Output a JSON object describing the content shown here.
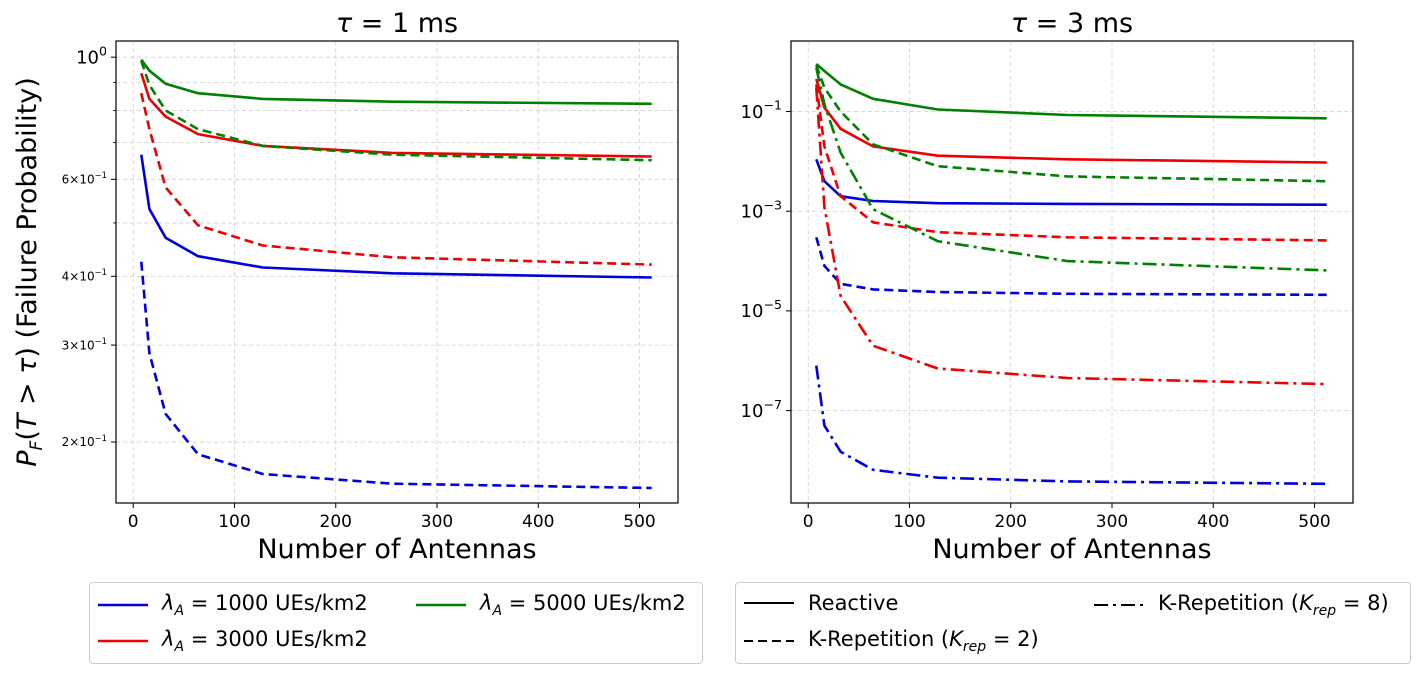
{
  "chart_data": [
    {
      "type": "line",
      "title": "τ = 1 ms",
      "xlabel": "Number of Antennas",
      "ylabel": "P_F(T > τ) (Failure Probability)",
      "yscale": "log",
      "xlim": [
        -17,
        538
      ],
      "ylim": [
        0.155,
        1.07
      ],
      "x": [
        8,
        16,
        32,
        64,
        128,
        256,
        512
      ],
      "xticks": [
        0,
        100,
        200,
        300,
        400,
        500
      ],
      "yticks": [
        {
          "value": 1.0,
          "label": "10^0"
        },
        {
          "value": 0.6,
          "label": "6×10^-1"
        },
        {
          "value": 0.4,
          "label": "4×10^-1"
        },
        {
          "value": 0.3,
          "label": "3×10^-1"
        },
        {
          "value": 0.2,
          "label": "2×10^-1"
        }
      ],
      "minor_yticks": [
        0.9,
        0.8,
        0.7,
        0.5
      ],
      "grid": true,
      "series": [
        {
          "name": "λA=1000 Reactive",
          "color": "#0000dd",
          "style": "solid",
          "values": [
            0.665,
            0.53,
            0.47,
            0.435,
            0.415,
            0.405,
            0.398
          ]
        },
        {
          "name": "λA=1000 K-Repetition (K=2)",
          "color": "#0000dd",
          "style": "dashed",
          "values": [
            0.425,
            0.29,
            0.225,
            0.19,
            0.175,
            0.168,
            0.165
          ]
        },
        {
          "name": "λA=3000 Reactive",
          "color": "#ee0000",
          "style": "solid",
          "values": [
            0.935,
            0.84,
            0.78,
            0.725,
            0.69,
            0.67,
            0.66
          ]
        },
        {
          "name": "λA=3000 K-Repetition (K=2)",
          "color": "#ee0000",
          "style": "dashed",
          "values": [
            0.86,
            0.74,
            0.58,
            0.495,
            0.455,
            0.433,
            0.42
          ]
        },
        {
          "name": "λA=5000 Reactive",
          "color": "#008000",
          "style": "solid",
          "values": [
            0.99,
            0.945,
            0.895,
            0.86,
            0.84,
            0.83,
            0.823
          ]
        },
        {
          "name": "λA=5000 K-Repetition (K=2)",
          "color": "#008000",
          "style": "dashed",
          "values": [
            0.985,
            0.89,
            0.8,
            0.74,
            0.69,
            0.665,
            0.65
          ]
        }
      ]
    },
    {
      "type": "line",
      "title": "τ = 3 ms",
      "xlabel": "Number of Antennas",
      "ylabel": "",
      "yscale": "log",
      "xlim": [
        -17,
        538
      ],
      "ylim": [
        1.4e-09,
        2.6
      ],
      "x": [
        8,
        16,
        32,
        64,
        128,
        256,
        512
      ],
      "xticks": [
        0,
        100,
        200,
        300,
        400,
        500
      ],
      "yticks": [
        {
          "value": 0.1,
          "label": "10^-1"
        },
        {
          "value": 0.001,
          "label": "10^-3"
        },
        {
          "value": 1e-05,
          "label": "10^-5"
        },
        {
          "value": 1e-07,
          "label": "10^-7"
        }
      ],
      "grid": true,
      "series": [
        {
          "name": "λA=1000 Reactive",
          "color": "#0000dd",
          "style": "solid",
          "values": [
            0.011,
            0.004,
            0.002,
            0.0016,
            0.00145,
            0.0014,
            0.00135
          ]
        },
        {
          "name": "λA=1000 K-Repetition (K=2)",
          "color": "#0000dd",
          "style": "dashed",
          "values": [
            0.0003,
            8e-05,
            3.5e-05,
            2.7e-05,
            2.4e-05,
            2.2e-05,
            2.1e-05
          ]
        },
        {
          "name": "λA=1000 K-Repetition (K=8)",
          "color": "#0000dd",
          "style": "dashdot",
          "values": [
            8e-07,
            5e-08,
            1.5e-08,
            6.5e-09,
            4.5e-09,
            3.8e-09,
            3.4e-09
          ]
        },
        {
          "name": "λA=3000 Reactive",
          "color": "#ee0000",
          "style": "solid",
          "values": [
            0.45,
            0.12,
            0.045,
            0.02,
            0.013,
            0.011,
            0.0095
          ]
        },
        {
          "name": "λA=3000 K-Repetition (K=2)",
          "color": "#ee0000",
          "style": "dashed",
          "values": [
            0.35,
            0.02,
            0.002,
            0.0006,
            0.00038,
            0.0003,
            0.00026
          ]
        },
        {
          "name": "λA=3000 K-Repetition (K=8)",
          "color": "#ee0000",
          "style": "dashdot",
          "values": [
            0.3,
            0.0012,
            2e-05,
            2e-06,
            7e-07,
            4.5e-07,
            3.4e-07
          ]
        },
        {
          "name": "λA=5000 Reactive",
          "color": "#008000",
          "style": "solid",
          "values": [
            0.9,
            0.65,
            0.35,
            0.18,
            0.11,
            0.085,
            0.073
          ]
        },
        {
          "name": "λA=5000 K-Repetition (K=2)",
          "color": "#008000",
          "style": "dashed",
          "values": [
            0.85,
            0.3,
            0.1,
            0.022,
            0.008,
            0.005,
            0.004
          ]
        },
        {
          "name": "λA=5000 K-Repetition (K=8)",
          "color": "#008000",
          "style": "dashdot",
          "values": [
            0.75,
            0.14,
            0.015,
            0.0011,
            0.00025,
            0.0001,
            6.5e-05
          ]
        }
      ]
    }
  ],
  "legend_colors": [
    {
      "text": "λA = 1000 UEs/km2",
      "color": "#0000dd"
    },
    {
      "text": "λA = 3000 UEs/km2",
      "color": "#ee0000"
    },
    {
      "text": "λA = 5000 UEs/km2",
      "color": "#008000"
    }
  ],
  "legend_styles": [
    {
      "text": "Reactive",
      "style": "solid"
    },
    {
      "text": "K-Repetition (Krep = 2)",
      "style": "dashed"
    },
    {
      "text": "K-Repetition (Krep = 8)",
      "style": "dashdot"
    }
  ]
}
